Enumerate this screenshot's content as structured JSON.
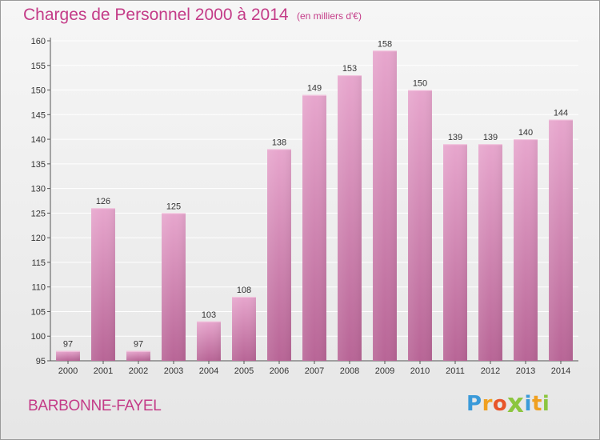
{
  "chart_data": {
    "type": "bar",
    "title": "Charges de Personnel 2000 à 2014",
    "subtitle": "(en milliers d'€)",
    "categories": [
      "2000",
      "2001",
      "2002",
      "2003",
      "2004",
      "2005",
      "2006",
      "2007",
      "2008",
      "2009",
      "2010",
      "2011",
      "2012",
      "2013",
      "2014"
    ],
    "values": [
      97,
      126,
      97,
      125,
      103,
      108,
      138,
      149,
      153,
      158,
      150,
      139,
      139,
      140,
      144
    ],
    "ylim": [
      95,
      160
    ],
    "yticks": [
      95,
      100,
      105,
      110,
      115,
      120,
      125,
      130,
      135,
      140,
      145,
      150,
      155,
      160
    ],
    "grid": true,
    "bar_color": "#d98ab8",
    "xlabel": "",
    "ylabel": ""
  },
  "place_name": "BARBONNE-FAYEL",
  "brand": {
    "letters": [
      "P",
      "r",
      "o",
      "x",
      "i",
      "t",
      "i"
    ],
    "colors": [
      "#3a9ad9",
      "#f0a020",
      "#e8542a",
      "#8cc63f",
      "#3a9ad9",
      "#f0a020",
      "#8cc63f"
    ]
  },
  "colors": {
    "title": "#c43c88",
    "grid": "#ffffff",
    "axis": "#555555"
  }
}
